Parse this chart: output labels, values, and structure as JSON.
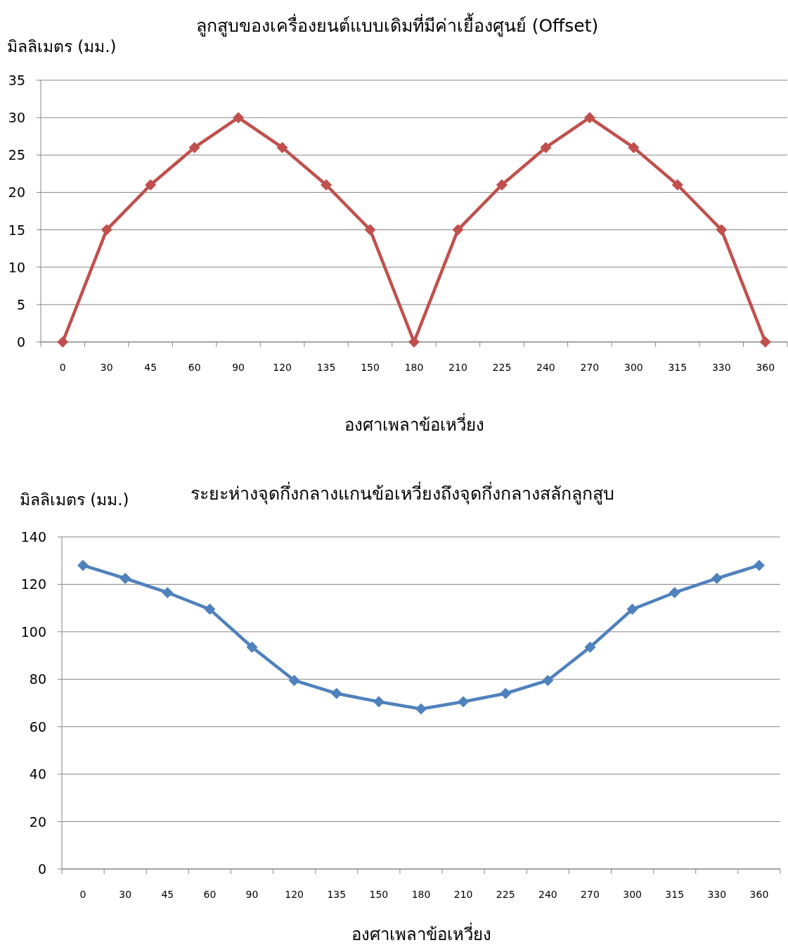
{
  "chart_data": [
    {
      "type": "line",
      "title": "ลูกสูบของเครื่องยนต์แบบเดิมที่มีค่าเยื้องศูนย์  (Offset)",
      "ylabel": "มิลลิเมตร (มม.)",
      "xlabel": "องศาเพลาข้อเหวี่ยง",
      "categories": [
        "0",
        "30",
        "45",
        "60",
        "90",
        "120",
        "135",
        "150",
        "180",
        "210",
        "225",
        "240",
        "270",
        "300",
        "315",
        "330",
        "360"
      ],
      "series": [
        {
          "color": "#c0504d",
          "values": [
            0,
            15,
            21,
            26,
            30,
            26,
            21,
            15,
            0,
            15,
            21,
            26,
            30,
            26,
            21,
            15,
            0
          ]
        }
      ],
      "ylim": [
        0,
        35
      ],
      "yticks": [
        0,
        5,
        10,
        15,
        20,
        25,
        30,
        35
      ],
      "grid": "y",
      "marker": "diamond",
      "line_style": "solid"
    },
    {
      "type": "line",
      "title": "ระยะห่างจุดกึ่งกลางแกนข้อเหวี่ยงถึงจุดกึ่งกลางสลักลูกสูบ",
      "ylabel": "มิลลิเมตร (มม.)",
      "xlabel": "องศาเพลาข้อเหวี่ยง",
      "categories": [
        "0",
        "30",
        "45",
        "60",
        "90",
        "120",
        "135",
        "150",
        "180",
        "210",
        "225",
        "240",
        "270",
        "300",
        "315",
        "330",
        "360"
      ],
      "series": [
        {
          "color": "#4f81bd",
          "values": [
            128,
            122.5,
            116.5,
            109.5,
            93.5,
            79.5,
            74,
            70.5,
            67.5,
            70.5,
            74,
            79.5,
            93.5,
            109.5,
            116.5,
            122.5,
            128
          ]
        }
      ],
      "ylim": [
        0,
        140
      ],
      "yticks": [
        0,
        20,
        40,
        60,
        80,
        100,
        120,
        140
      ],
      "grid": "y",
      "marker": "diamond",
      "line_style": "solid"
    }
  ]
}
